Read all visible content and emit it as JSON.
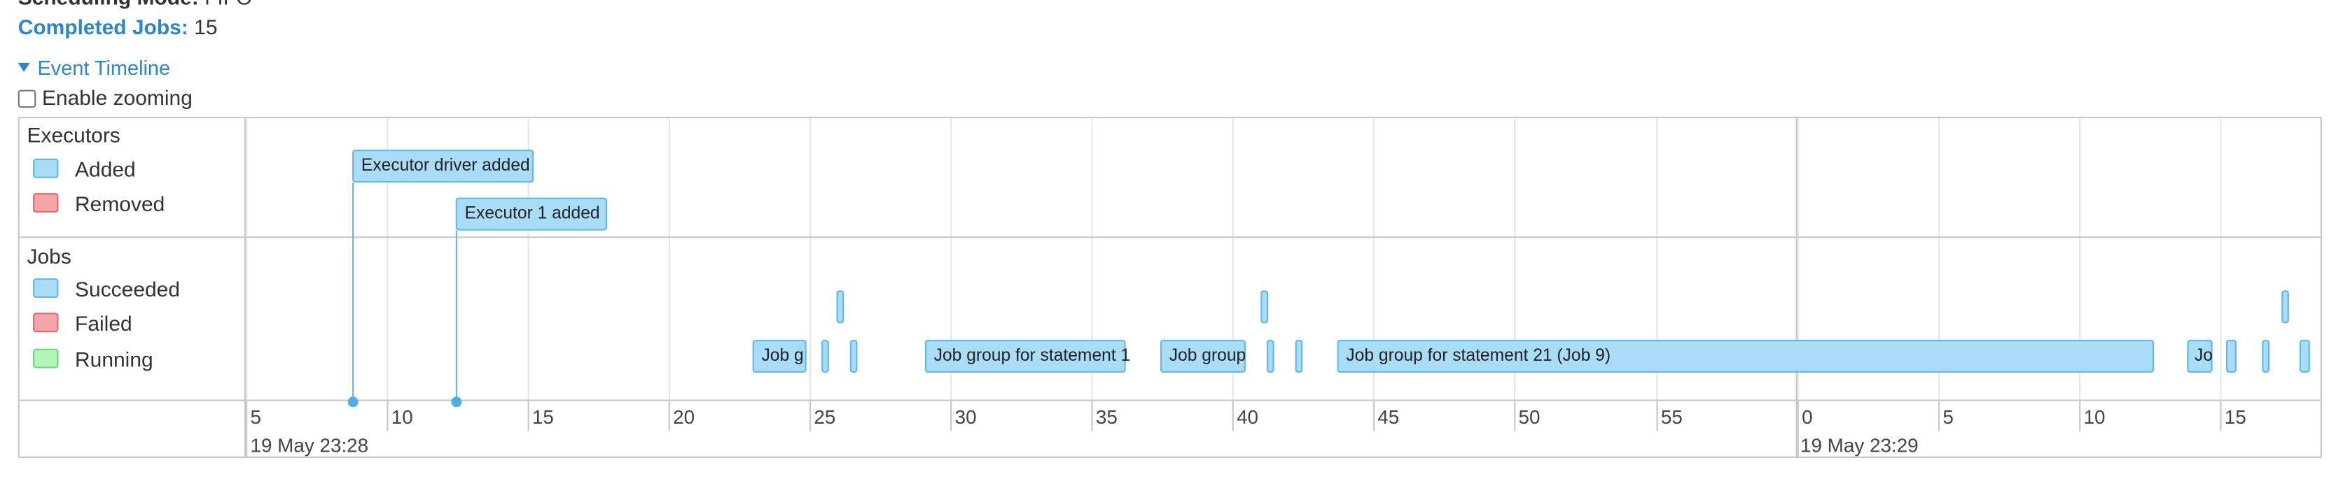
{
  "header": {
    "scheduling_label": "Scheduling Mode:",
    "scheduling_value": "FIFO",
    "completed_label": "Completed Jobs:",
    "completed_value": "15"
  },
  "timeline": {
    "toggle_label": "Event Timeline",
    "zoom_label": "Enable zooming"
  },
  "executors": {
    "title": "Executors",
    "legend": [
      {
        "label": "Added",
        "color": "#a9dcf7"
      },
      {
        "label": "Removed",
        "color": "#f4a5a8"
      }
    ],
    "events": [
      {
        "label": "Executor driver added",
        "second": 8.8
      },
      {
        "label": "Executor 1 added",
        "second": 12.5
      }
    ]
  },
  "jobs": {
    "title": "Jobs",
    "legend": [
      {
        "label": "Succeeded",
        "color": "#a9dcf7"
      },
      {
        "label": "Failed",
        "color": "#f4a5a8"
      },
      {
        "label": "Running",
        "color": "#b3f5b8"
      }
    ],
    "items": [
      {
        "label": "Job g"
      },
      {
        "label": "Job group for statement 1"
      },
      {
        "label": "Job group"
      },
      {
        "label": "Job group for statement 21 (Job 9)"
      },
      {
        "label": "Jo"
      }
    ]
  },
  "axis": {
    "ticks": [
      "5",
      "10",
      "15",
      "20",
      "25",
      "30",
      "35",
      "40",
      "45",
      "50",
      "55",
      "0",
      "5",
      "10",
      "15"
    ],
    "date_labels": [
      "19 May 23:28",
      "19 May 23:29"
    ]
  }
}
